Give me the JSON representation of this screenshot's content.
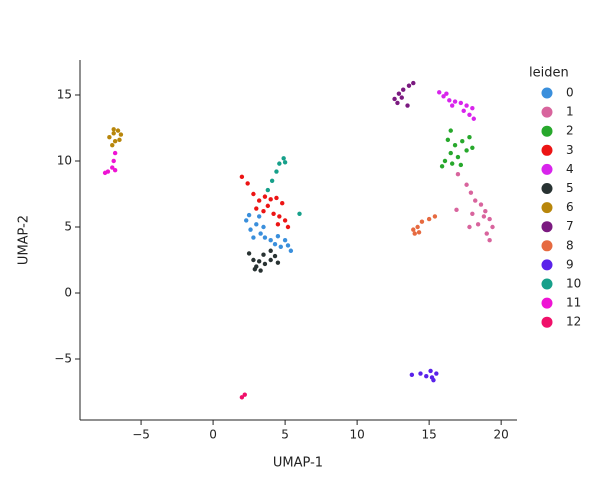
{
  "chart_data": {
    "type": "scatter",
    "xlabel": "UMAP-1",
    "ylabel": "UMAP-2",
    "legend_title": "leiden",
    "legend": "right",
    "xlim": [
      -9.24,
      21.1
    ],
    "ylim": [
      -9.62,
      17.65
    ],
    "xticks": [
      {
        "value": -5,
        "label": "−5"
      },
      0,
      5,
      10,
      15,
      20
    ],
    "yticks": [
      {
        "value": -5,
        "label": "−5"
      },
      0,
      5,
      10,
      15
    ],
    "series": [
      {
        "name": "0",
        "color": "#3a8fdc",
        "x": [
          2.3,
          2.6,
          3,
          3.3,
          3.6,
          4,
          4.3,
          4.7,
          5.2,
          5.4,
          2.8,
          3.5,
          4.5,
          5,
          3.2,
          2.5
        ],
        "y": [
          5.5,
          4.8,
          5.2,
          4.5,
          4.2,
          4,
          3.7,
          3.5,
          3.6,
          3.2,
          4.2,
          5,
          4.3,
          4,
          5.8,
          5.9
        ]
      },
      {
        "name": "1",
        "color": "#d8649d",
        "x": [
          17,
          17.6,
          17.9,
          18.2,
          18.6,
          18.9,
          19.2,
          19.4,
          19,
          19.2,
          18.4,
          17.8,
          18,
          16.9,
          18.8
        ],
        "y": [
          9,
          8.2,
          7.6,
          7,
          6.7,
          6.2,
          5.6,
          5,
          4.5,
          4,
          5.2,
          5,
          6,
          6.3,
          5.8
        ]
      },
      {
        "name": "2",
        "color": "#27a82c",
        "x": [
          16.3,
          16.8,
          17.3,
          17.8,
          16.5,
          17,
          17.6,
          18,
          16.1,
          16.6,
          15.9,
          17.2,
          16.5
        ],
        "y": [
          11.6,
          11.2,
          11.5,
          11.8,
          10.6,
          10.3,
          10.8,
          11,
          10,
          9.8,
          9.6,
          9.7,
          12.3
        ]
      },
      {
        "name": "3",
        "color": "#ec1414",
        "x": [
          2.8,
          3.2,
          3.6,
          4,
          4.4,
          4.8,
          3,
          3.5,
          4.2,
          4.6,
          5,
          5.2,
          4.5,
          2.4,
          2,
          3.8
        ],
        "y": [
          7.5,
          7,
          7.3,
          7.1,
          7.2,
          6.8,
          6.4,
          6.2,
          6,
          5.8,
          5.5,
          5,
          5.2,
          8.3,
          8.8,
          6.6
        ]
      },
      {
        "name": "4",
        "color": "#d824ec",
        "x": [
          15.7,
          16,
          16.4,
          16.8,
          17.2,
          17.6,
          18,
          17.8,
          16.6,
          17.4,
          18.1,
          16.2
        ],
        "y": [
          15.2,
          14.9,
          14.6,
          14.5,
          14.4,
          14.2,
          14,
          13.5,
          14.2,
          13.8,
          13.2,
          15.1
        ]
      },
      {
        "name": "5",
        "color": "#283232",
        "x": [
          2.5,
          2.8,
          3,
          3.3,
          3.6,
          4,
          4.3,
          3.5,
          3.2,
          4,
          2.9,
          4.5
        ],
        "y": [
          3,
          2.5,
          2,
          1.7,
          2.2,
          2.5,
          2.8,
          2.9,
          2.4,
          3.2,
          1.8,
          2.3
        ]
      },
      {
        "name": "6",
        "color": "#b8860b",
        "x": [
          -7.2,
          -6.9,
          -6.6,
          -6.4,
          -6.8,
          -7,
          -6.5,
          -6.9
        ],
        "y": [
          11.8,
          12.1,
          12.3,
          12,
          11.5,
          11.2,
          11.6,
          12.4
        ]
      },
      {
        "name": "7",
        "color": "#7b1a80",
        "x": [
          12.6,
          12.9,
          13.2,
          13.6,
          13.9,
          13.1,
          12.8,
          13.5
        ],
        "y": [
          14.7,
          15.1,
          15.4,
          15.7,
          15.9,
          14.8,
          14.4,
          14.2
        ]
      },
      {
        "name": "8",
        "color": "#e66a40",
        "x": [
          14,
          14.2,
          14.5,
          15,
          15.4,
          13.9,
          14.3
        ],
        "y": [
          4.5,
          5,
          5.4,
          5.6,
          5.8,
          4.8,
          4.6
        ]
      },
      {
        "name": "9",
        "color": "#5a22ea",
        "x": [
          13.8,
          14.4,
          14.8,
          15.2,
          15.5,
          15.1,
          15.3
        ],
        "y": [
          -6.2,
          -6.1,
          -6.3,
          -6.4,
          -6.1,
          -5.9,
          -6.6
        ]
      },
      {
        "name": "10",
        "color": "#16a08a",
        "x": [
          3.8,
          4.1,
          4.4,
          4.6,
          4.9,
          5,
          6
        ],
        "y": [
          7.8,
          8.5,
          9.2,
          9.8,
          10.2,
          9.9,
          6
        ]
      },
      {
        "name": "11",
        "color": "#ee14d4",
        "x": [
          -7.3,
          -7,
          -6.9,
          -6.8,
          -7.5,
          -6.8
        ],
        "y": [
          9.2,
          9.5,
          10,
          10.6,
          9.1,
          9.3
        ]
      },
      {
        "name": "12",
        "color": "#f0106a",
        "x": [
          2,
          2.2
        ],
        "y": [
          -7.9,
          -7.7
        ]
      }
    ]
  }
}
